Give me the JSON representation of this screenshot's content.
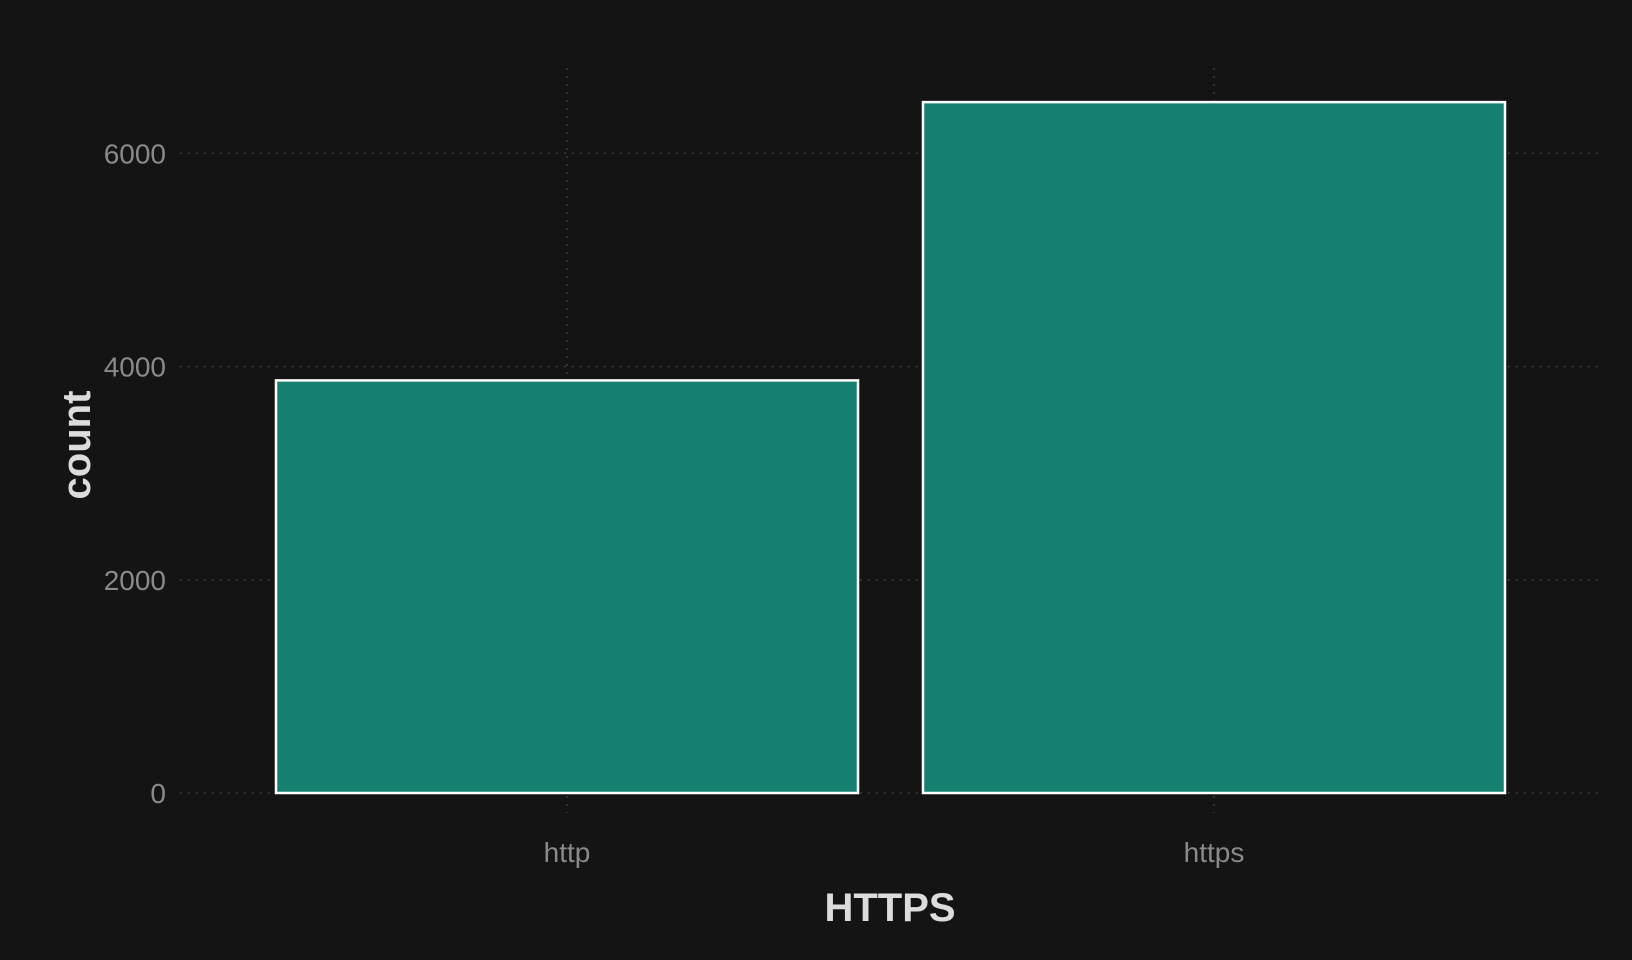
{
  "chart_data": {
    "type": "bar",
    "categories": [
      "http",
      "https"
    ],
    "values": [
      3870,
      6480
    ],
    "xlabel": "HTTPS",
    "ylabel": "count",
    "ylim": [
      0,
      6800
    ],
    "yticks": [
      0,
      2000,
      4000,
      6000
    ],
    "grid": true,
    "legend": "none",
    "colors": {
      "background": "#141414",
      "bar_fill": "#168070",
      "bar_stroke": "#ffffff",
      "grid": "#3c3c3c",
      "tick_text": "#8a8a8a",
      "title_text": "#dcdcdc"
    }
  }
}
